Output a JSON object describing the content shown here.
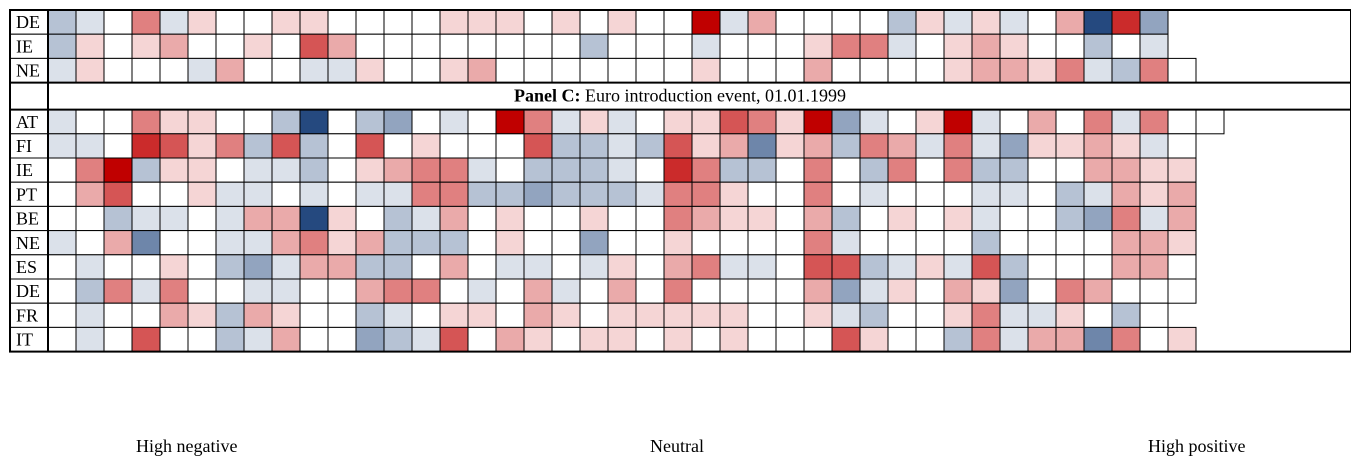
{
  "chart_data": {
    "type": "heatmap",
    "color_scale": {
      "negative": "#25497f",
      "neutral": "#ffffff",
      "positive": "#c00000",
      "range": [
        -3,
        3
      ]
    },
    "panels": [
      {
        "title_bold": "",
        "title_rest": "",
        "rows": [
          {
            "label": "DE",
            "values": [
              -1,
              -0.5,
              0,
              1.5,
              -0.5,
              0.5,
              0,
              0,
              0.5,
              0.5,
              0,
              0,
              0,
              0,
              0.5,
              0.5,
              0.5,
              0,
              0.5,
              0,
              0.5,
              0,
              0,
              3,
              -0.5,
              1,
              0,
              0,
              0,
              0,
              -1,
              0.5,
              -0.5,
              0.5,
              -0.5,
              0,
              1,
              -3,
              2.5,
              -1.5
            ]
          },
          {
            "label": "IE",
            "values": [
              -1,
              0.5,
              0,
              0.5,
              1,
              0,
              0,
              0.5,
              0,
              2,
              1,
              0,
              0,
              0,
              0,
              0,
              0,
              0,
              0,
              -1,
              0,
              0,
              0,
              -0.5,
              0,
              0,
              0,
              0.5,
              1.5,
              1.5,
              -0.5,
              0,
              0.5,
              1,
              0.5,
              0,
              0,
              -1,
              0,
              -0.5
            ]
          },
          {
            "label": "NE",
            "values": [
              -0.5,
              0.5,
              0,
              0,
              0,
              -0.5,
              1,
              0,
              0,
              -0.5,
              -0.5,
              0.5,
              0,
              0,
              0.5,
              1,
              0,
              0,
              0,
              0,
              0,
              0,
              0,
              0.5,
              0,
              0,
              0,
              1,
              0,
              0,
              0,
              0,
              0.5,
              1,
              1,
              0.5,
              1.5,
              -0.5,
              -1,
              1.5,
              0
            ]
          }
        ]
      },
      {
        "title_bold": "Panel C:",
        "title_rest": " Euro introduction event, 01.01.1999",
        "rows": [
          {
            "label": "AT",
            "values": [
              -0.5,
              0,
              0,
              1.5,
              0.5,
              0.5,
              0,
              0,
              -1,
              -3,
              0,
              -1,
              -1.5,
              0,
              -0.5,
              0,
              3,
              1.5,
              -0.5,
              0.5,
              -0.5,
              0,
              0.5,
              0.5,
              2,
              1.5,
              0.5,
              3,
              -1.5,
              -0.5,
              0,
              0.5,
              3,
              -0.5,
              0,
              1,
              0,
              1.5,
              -0.5,
              1.5,
              0,
              0
            ]
          },
          {
            "label": "FI",
            "values": [
              -0.5,
              -0.5,
              0,
              2.5,
              2,
              0.5,
              1.5,
              -1,
              2,
              -1,
              0,
              2,
              0,
              0.5,
              0,
              0,
              0,
              2,
              -1,
              -1,
              -0.5,
              -1,
              2,
              0.5,
              1,
              -2,
              0.5,
              1,
              -1,
              1.5,
              1,
              -0.5,
              1.5,
              -0.5,
              -1.5,
              0.5,
              0.5,
              1,
              0.5,
              -0.5,
              0
            ]
          },
          {
            "label": "IE",
            "values": [
              0,
              1.5,
              3,
              -1,
              0.5,
              0.5,
              0,
              -0.5,
              -0.5,
              -1,
              0,
              0.5,
              1,
              1.5,
              1.5,
              -0.5,
              0,
              -1,
              -1,
              -1,
              -0.5,
              0,
              2.5,
              1.5,
              -1,
              -1,
              0,
              1.5,
              0,
              -1,
              1.5,
              0,
              1.5,
              -1,
              -1,
              0,
              0,
              1,
              1,
              0.5,
              0.5
            ]
          },
          {
            "label": "PT",
            "values": [
              0,
              1,
              2,
              0,
              0,
              0.5,
              -0.5,
              -0.5,
              0,
              -0.5,
              0,
              -0.5,
              -0.5,
              1.5,
              1.5,
              -1,
              -1,
              -1.5,
              -1,
              -1,
              -1,
              -0.5,
              1.5,
              1.5,
              0.5,
              0,
              0,
              1.5,
              0,
              -0.5,
              0,
              0,
              0,
              -0.5,
              -0.5,
              0,
              -1,
              -0.5,
              1,
              0.5,
              1
            ]
          },
          {
            "label": "BE",
            "values": [
              0,
              0,
              -1,
              -0.5,
              -0.5,
              0,
              -0.5,
              1,
              1,
              -3,
              0.5,
              0,
              -1,
              -0.5,
              1,
              0,
              0.5,
              0,
              0,
              0.5,
              0,
              0,
              1.5,
              1,
              0.5,
              0.5,
              0,
              1,
              -1,
              0,
              0.5,
              0,
              0.5,
              -0.5,
              0,
              0,
              -1,
              -1.5,
              1.5,
              -0.5,
              1
            ]
          },
          {
            "label": "NE",
            "values": [
              -0.5,
              0,
              1,
              -2,
              0,
              0,
              -0.5,
              -0.5,
              1,
              1.5,
              0.5,
              1,
              -1,
              -1,
              -1,
              0,
              0.5,
              0,
              0,
              -1.5,
              0,
              0,
              0.5,
              0,
              0,
              0,
              0,
              1.5,
              -0.5,
              0,
              0,
              0,
              0,
              -1,
              0,
              0,
              0,
              0,
              1,
              1,
              0.5
            ]
          },
          {
            "label": "ES",
            "values": [
              0,
              -0.5,
              0,
              0,
              0.5,
              0,
              -1,
              -1.5,
              -0.5,
              1,
              1,
              -1,
              -1,
              0,
              1,
              0,
              -0.5,
              -0.5,
              0,
              -0.5,
              0.5,
              0,
              1,
              1.5,
              -0.5,
              -0.5,
              0,
              2,
              2,
              -1,
              -0.5,
              0.5,
              -0.5,
              2,
              -1,
              0,
              0,
              0,
              1,
              1,
              0
            ]
          },
          {
            "label": "DE",
            "values": [
              0,
              -1,
              1.5,
              -0.5,
              1.5,
              0,
              0,
              -0.5,
              -0.5,
              0,
              0,
              1,
              1.5,
              1.5,
              0,
              -0.5,
              0,
              1,
              -0.5,
              0,
              1,
              0,
              1.5,
              0,
              0,
              0,
              0,
              1,
              -1.5,
              -0.5,
              0.5,
              0,
              1,
              0.5,
              -1.5,
              0,
              1.5,
              1,
              0,
              0,
              0
            ]
          },
          {
            "label": "FR",
            "values": [
              0,
              -0.5,
              0,
              0,
              1,
              0.5,
              -1,
              1,
              0.5,
              0,
              0,
              -1,
              -0.5,
              0,
              0.5,
              0.5,
              0,
              1,
              0.5,
              0,
              0.5,
              0.5,
              0.5,
              0.5,
              0.5,
              0,
              0,
              0.5,
              -0.5,
              -1,
              0,
              0,
              0.5,
              1.5,
              -0.5,
              -0.5,
              0.5,
              0,
              -1,
              0
            ]
          },
          {
            "label": "IT",
            "values": [
              0,
              -0.5,
              0,
              2,
              0,
              0,
              -1,
              -0.5,
              1,
              0,
              0,
              -1.5,
              -1,
              -0.5,
              2,
              0,
              1,
              0.5,
              0,
              0.5,
              0.5,
              0,
              0.5,
              0,
              0.5,
              0,
              0,
              0,
              2,
              0.5,
              0,
              0,
              -1,
              1.5,
              -0.5,
              1,
              1,
              -2,
              1.5,
              0,
              0.5
            ]
          }
        ]
      }
    ],
    "legend": {
      "low": "High negative",
      "mid": "Neutral",
      "high": "High positive"
    }
  }
}
